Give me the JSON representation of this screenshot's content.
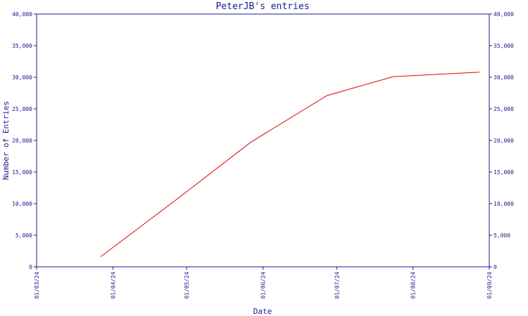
{
  "chart_data": {
    "type": "line",
    "title": "PeterJB's entries",
    "xlabel": "Date",
    "ylabel": "Number of Entries",
    "x_tick_labels": [
      "01/03/24",
      "01/04/24",
      "01/05/24",
      "01/06/24",
      "01/07/24",
      "01/08/24",
      "01/09/24"
    ],
    "xlim": [
      "2024-03-01",
      "2024-09-01"
    ],
    "ylim": [
      0,
      40000
    ],
    "y_ticks": [
      0,
      5000,
      10000,
      15000,
      20000,
      25000,
      30000,
      35000,
      40000
    ],
    "y_tick_labels": [
      "0",
      "5,000",
      "10,000",
      "15,000",
      "20,000",
      "25,000",
      "30,000",
      "35,000",
      "40,000"
    ],
    "grid": false,
    "right_axis": true,
    "series": [
      {
        "color": "#e00000",
        "x": [
          "2024-03-27",
          "2024-04-26",
          "2024-05-27",
          "2024-06-27",
          "2024-07-24",
          "2024-08-28"
        ],
        "y": [
          1600,
          10400,
          19700,
          27100,
          30100,
          30800
        ]
      }
    ]
  }
}
